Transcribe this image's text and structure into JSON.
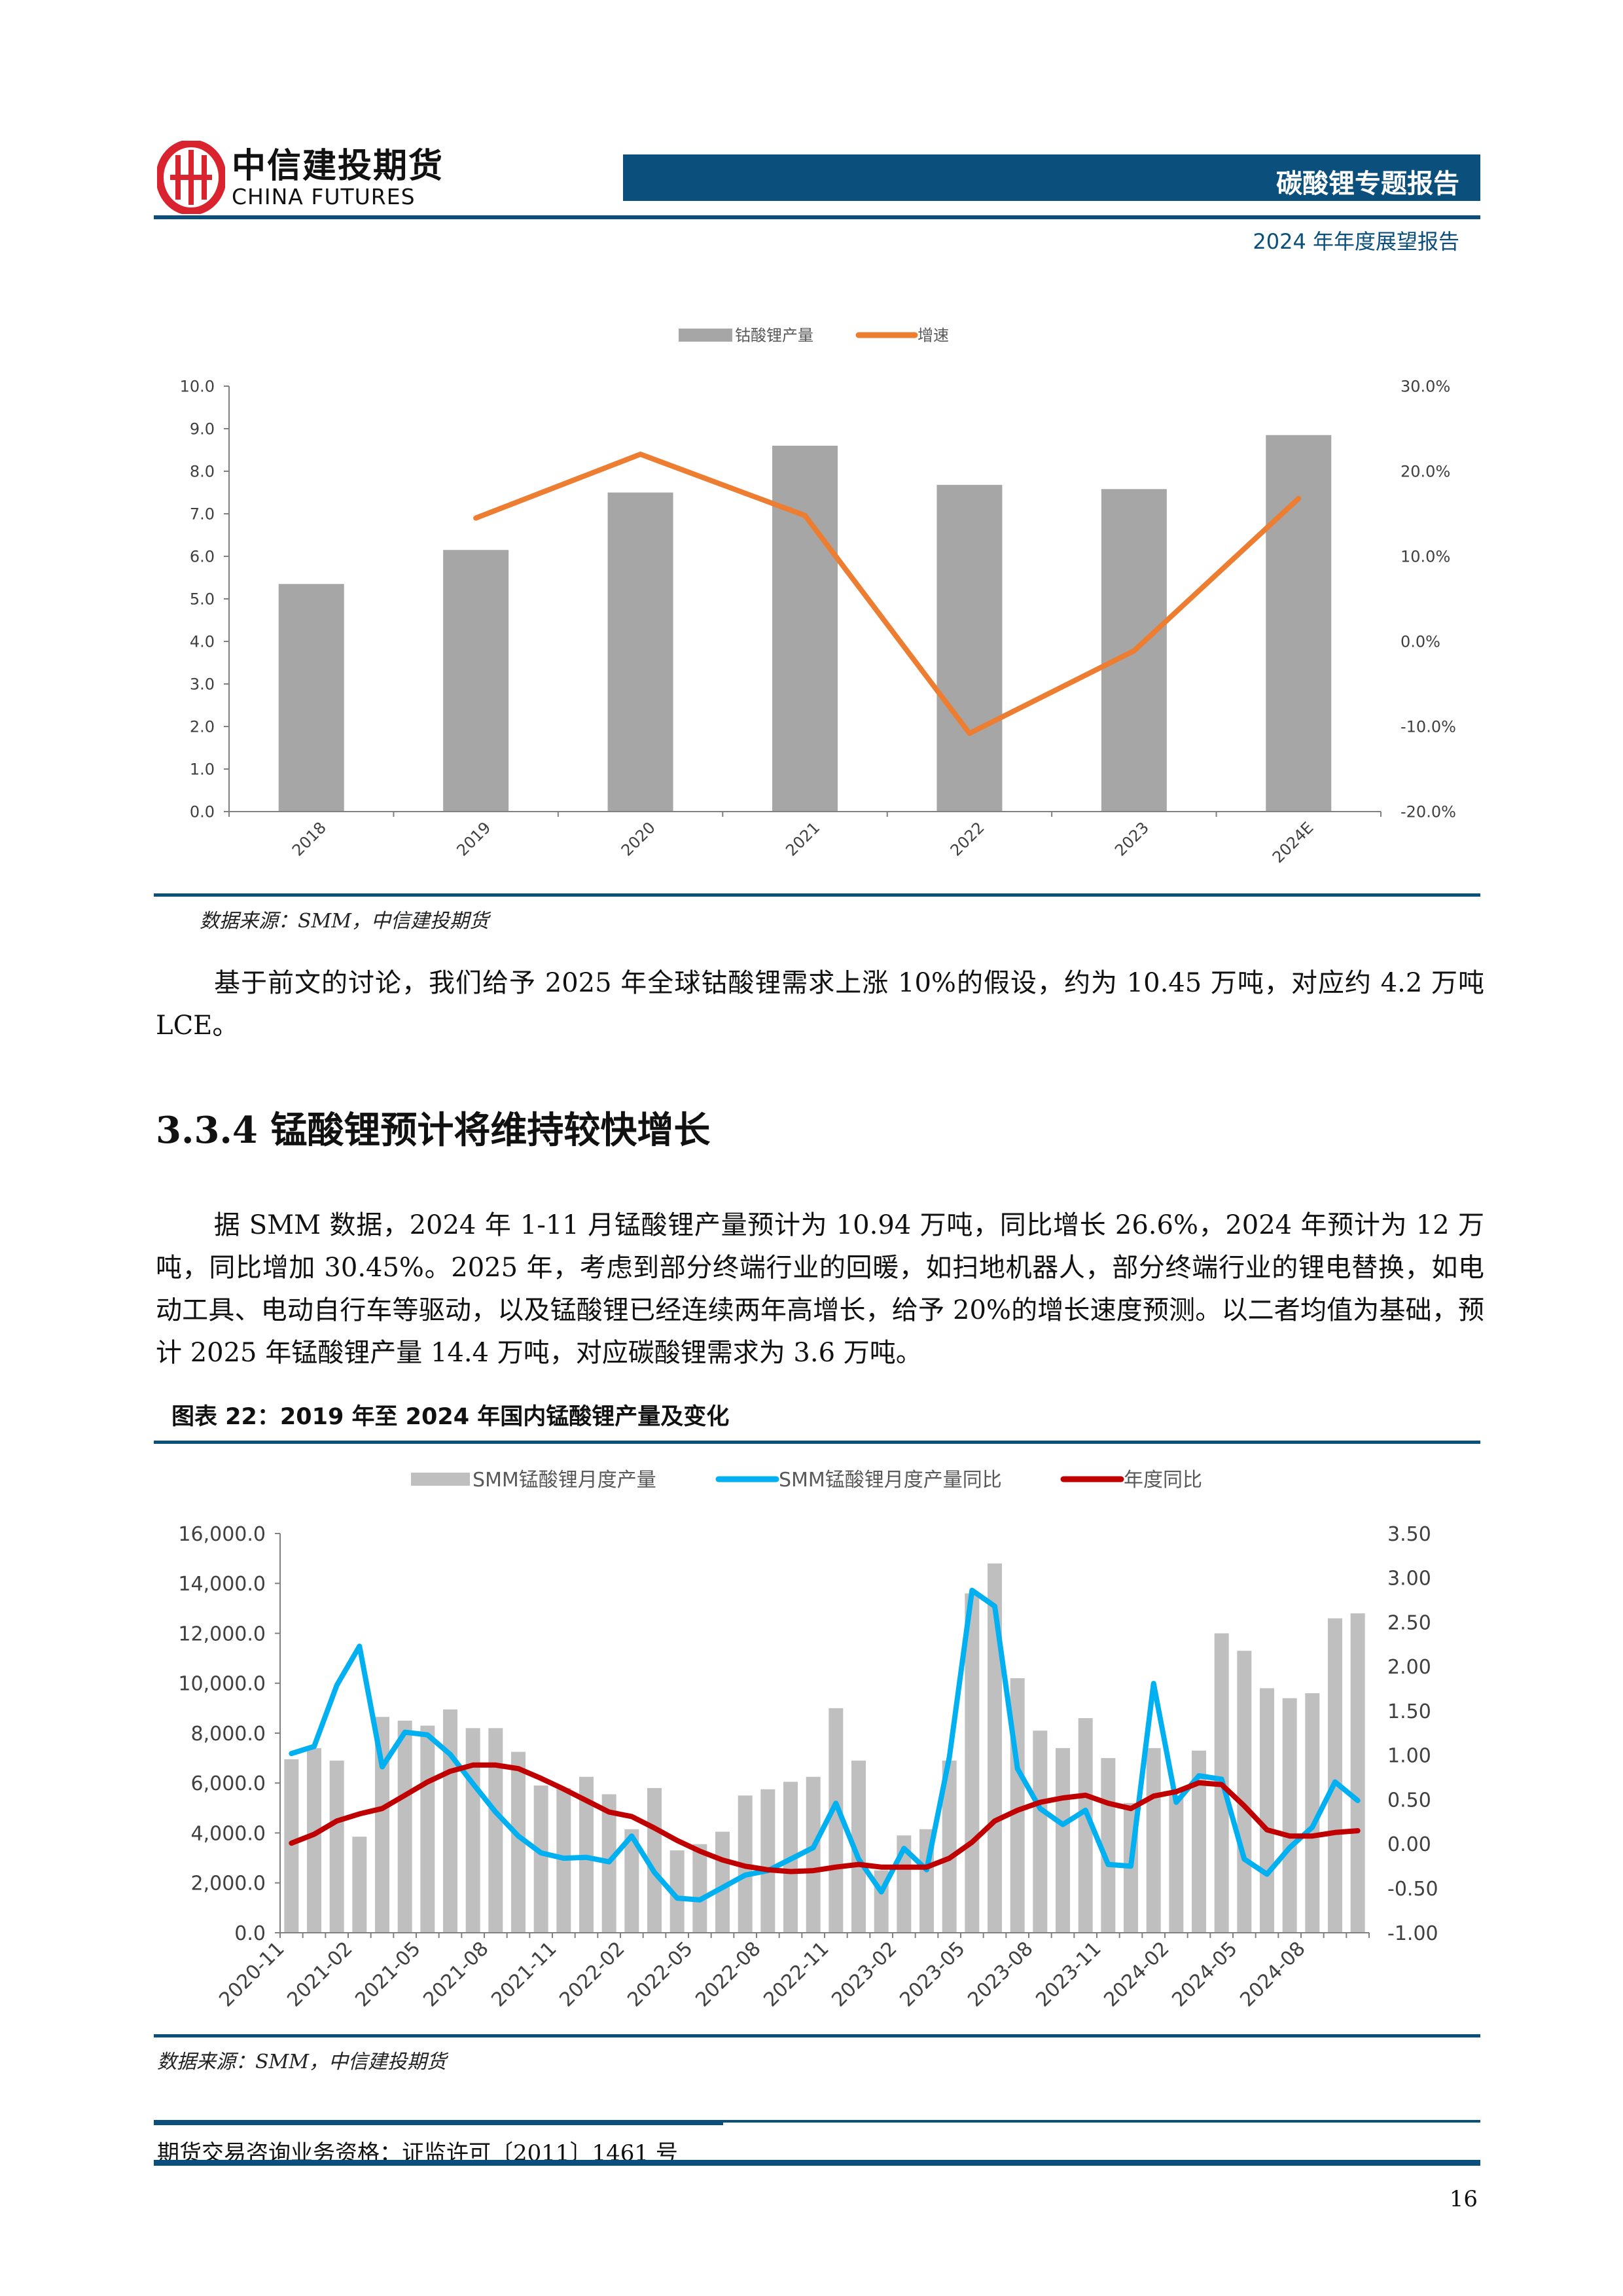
{
  "header": {
    "logo_cn": "中信建投期货",
    "logo_en": "CHINA FUTURES",
    "report_type": "碳酸锂专题报告",
    "subtitle": "2024 年年度展望报告",
    "brand_color": "#0b4f7c",
    "logo_color": "#d9232e"
  },
  "chart1_source": "数据来源：SMM，中信建投期货",
  "paragraph1": "基于前文的讨论，我们给予 2025 年全球钴酸锂需求上涨 10%的假设，约为 10.45 万吨，对应约 4.2 万吨 LCE。",
  "section_heading": "3.3.4 锰酸锂预计将维持较快增长",
  "paragraph2": "据 SMM 数据，2024 年 1-11 月锰酸锂产量预计为 10.94 万吨，同比增长 26.6%，2024 年预计为 12 万吨，同比增加 30.45%。2025 年，考虑到部分终端行业的回暖，如扫地机器人，部分终端行业的锂电替换，如电动工具、电动自行车等驱动，以及锰酸锂已经连续两年高增长，给予 20%的增长速度预测。以二者均值为基础，预计 2025 年锰酸锂产量 14.4 万吨，对应碳酸锂需求为 3.6 万吨。",
  "figure22_caption": "图表 22：2019 年至 2024 年国内锰酸锂产量及变化",
  "chart2_source": "数据来源：SMM，中信建投期货",
  "footer": {
    "license": "期货交易咨询业务资格：证监许可〔2011〕1461 号",
    "page_number": "16"
  },
  "chart_data": [
    {
      "type": "bar",
      "categories": [
        "2018",
        "2019",
        "2020",
        "2021",
        "2022",
        "2023",
        "2024E"
      ],
      "series": [
        {
          "name": "钴酸锂产量",
          "type": "bar",
          "axis": "left",
          "color": "#a6a6a6",
          "values": [
            5.35,
            6.15,
            7.5,
            8.6,
            7.68,
            7.58,
            8.85
          ]
        },
        {
          "name": "增速",
          "type": "line",
          "axis": "right",
          "color": "#ed7d31",
          "values": [
            null,
            14.5,
            22.0,
            14.8,
            -10.8,
            -1.1,
            16.8
          ]
        }
      ],
      "ylim": [
        0,
        10
      ],
      "yticks": [
        "0.0",
        "1.0",
        "2.0",
        "3.0",
        "4.0",
        "5.0",
        "6.0",
        "7.0",
        "8.0",
        "9.0",
        "10.0"
      ],
      "y2lim": [
        -20,
        30
      ],
      "y2ticks": [
        "-20.0%",
        "-10.0%",
        "0.0%",
        "10.0%",
        "20.0%",
        "30.0%"
      ],
      "legend": "top",
      "grid": false
    },
    {
      "type": "bar",
      "categories": [
        "2020-11",
        "2020-12",
        "2021-01",
        "2021-02",
        "2021-03",
        "2021-04",
        "2021-05",
        "2021-06",
        "2021-07",
        "2021-08",
        "2021-09",
        "2021-10",
        "2021-11",
        "2021-12",
        "2022-01",
        "2022-02",
        "2022-03",
        "2022-04",
        "2022-05",
        "2022-06",
        "2022-07",
        "2022-08",
        "2022-09",
        "2022-10",
        "2022-11",
        "2022-12",
        "2023-01",
        "2023-02",
        "2023-03",
        "2023-04",
        "2023-05",
        "2023-06",
        "2023-07",
        "2023-08",
        "2023-09",
        "2023-10",
        "2023-11",
        "2023-12",
        "2024-01",
        "2024-02",
        "2024-03",
        "2024-04",
        "2024-05",
        "2024-06",
        "2024-07",
        "2024-08",
        "2024-09",
        "2024-10"
      ],
      "xticks": [
        "2020-11",
        "2021-02",
        "2021-05",
        "2021-08",
        "2021-11",
        "2022-02",
        "2022-05",
        "2022-08",
        "2022-11",
        "2023-02",
        "2023-05",
        "2023-08",
        "2023-11",
        "2024-02",
        "2024-05",
        "2024-08"
      ],
      "series": [
        {
          "name": "SMM锰酸锂月度产量",
          "type": "bar",
          "axis": "left",
          "color": "#bfbfbf",
          "values": [
            6950,
            7400,
            6900,
            3850,
            8650,
            8500,
            8300,
            8950,
            8200,
            8200,
            7250,
            5900,
            5800,
            6250,
            5550,
            4150,
            5800,
            3300,
            3550,
            4050,
            5500,
            5750,
            6050,
            6250,
            9000,
            6900,
            2500,
            3900,
            4150,
            6900,
            13600,
            14800,
            10200,
            8100,
            7400,
            8600,
            7000,
            5200,
            7400,
            5500,
            7300,
            12000,
            11300,
            9800,
            9400,
            9600,
            12600,
            12800
          ]
        },
        {
          "name": "SMM锰酸锂月度产量同比",
          "type": "line",
          "axis": "right",
          "color": "#00b0f0",
          "values": [
            1.02,
            1.1,
            1.79,
            2.23,
            0.87,
            1.26,
            1.23,
            1.01,
            0.68,
            0.36,
            0.09,
            -0.1,
            -0.16,
            -0.15,
            -0.2,
            0.09,
            -0.32,
            -0.61,
            -0.63,
            -0.49,
            -0.35,
            -0.3,
            -0.17,
            -0.04,
            0.46,
            -0.17,
            -0.54,
            -0.05,
            -0.29,
            0.98,
            2.86,
            2.68,
            0.85,
            0.4,
            0.22,
            0.38,
            -0.23,
            -0.25,
            1.81,
            0.47,
            0.77,
            0.73,
            -0.17,
            -0.34,
            -0.04,
            0.19,
            0.7,
            0.49
          ]
        },
        {
          "name": "年度同比",
          "type": "line",
          "axis": "right",
          "color": "#c00000",
          "values": [
            0.01,
            0.11,
            0.26,
            0.34,
            0.4,
            0.55,
            0.7,
            0.82,
            0.89,
            0.89,
            0.85,
            0.74,
            0.62,
            0.49,
            0.36,
            0.31,
            0.18,
            0.04,
            -0.08,
            -0.18,
            -0.25,
            -0.29,
            -0.31,
            -0.3,
            -0.26,
            -0.23,
            -0.26,
            -0.26,
            -0.26,
            -0.16,
            0.02,
            0.26,
            0.38,
            0.47,
            0.52,
            0.55,
            0.46,
            0.4,
            0.54,
            0.59,
            0.69,
            0.67,
            0.43,
            0.16,
            0.09,
            0.09,
            0.13,
            0.15
          ]
        }
      ],
      "ylim": [
        0,
        16000
      ],
      "yticks": [
        "0.0",
        "2,000.0",
        "4,000.0",
        "6,000.0",
        "8,000.0",
        "10,000.0",
        "12,000.0",
        "14,000.0",
        "16,000.0"
      ],
      "y2lim": [
        -1,
        3.5
      ],
      "y2ticks": [
        "-1.00",
        "-0.50",
        "0.00",
        "0.50",
        "1.00",
        "1.50",
        "2.00",
        "2.50",
        "3.00",
        "3.50"
      ],
      "legend": "top",
      "grid": false
    }
  ]
}
